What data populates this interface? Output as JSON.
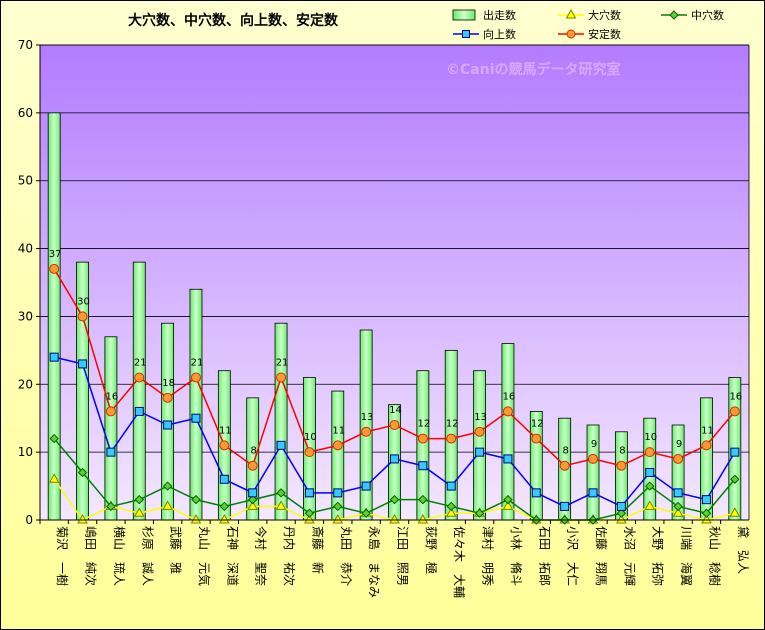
{
  "chart_data": {
    "type": "bar",
    "title": "大穴数、中穴数、向上数、安定数",
    "watermark": "©Caniの競馬データ研究室",
    "ylim": [
      0,
      70
    ],
    "yticks": [
      0,
      10,
      20,
      30,
      40,
      50,
      60,
      70
    ],
    "grid": "horizontal",
    "legend_position": "top-right",
    "categories": [
      "菊沢　一樹",
      "嶋田　純次",
      "横山　琉人",
      "杉原　誠人",
      "武藤　雅",
      "丸山　元気",
      "石神　深道",
      "今村　聖奈",
      "丹内　祐次",
      "斎藤　新",
      "丸田　恭介",
      "永島　まなみ",
      "江田　照男",
      "荻野　極",
      "佐々木　大輔",
      "津村　明秀",
      "小林　脩斗",
      "石田　拓郎",
      "小沢　大仁",
      "佐藤　翔馬",
      "水沼　元輝",
      "大野　拓弥",
      "川端　海翼",
      "秋山　稔樹",
      "黛　弘人"
    ],
    "series": [
      {
        "name": "出走数",
        "type": "bar",
        "color": "#99ff99",
        "values": [
          60,
          38,
          27,
          38,
          29,
          34,
          22,
          18,
          29,
          21,
          19,
          28,
          17,
          22,
          25,
          22,
          26,
          16,
          15,
          14,
          13,
          15,
          14,
          18,
          21
        ]
      },
      {
        "name": "大穴数",
        "type": "line",
        "color": "#ffff00",
        "marker": "triangle",
        "values": [
          6,
          0,
          2,
          1,
          2,
          0,
          0,
          2,
          2,
          0,
          0,
          1,
          0,
          0,
          1,
          1,
          2,
          0,
          0,
          0,
          0,
          2,
          1,
          0,
          1
        ]
      },
      {
        "name": "中穴数",
        "type": "line",
        "color": "#008000",
        "marker": "diamond",
        "values": [
          12,
          7,
          2,
          3,
          5,
          3,
          2,
          3,
          4,
          1,
          2,
          1,
          3,
          3,
          2,
          1,
          3,
          0,
          0,
          0,
          1,
          5,
          2,
          1,
          6
        ]
      },
      {
        "name": "向上数",
        "type": "line",
        "color": "#0000ff",
        "marker": "square",
        "values": [
          24,
          23,
          10,
          16,
          14,
          15,
          6,
          4,
          11,
          4,
          4,
          5,
          9,
          8,
          5,
          10,
          9,
          4,
          2,
          4,
          2,
          7,
          4,
          3,
          10
        ]
      },
      {
        "name": "安定数",
        "type": "line",
        "color": "#ff0000",
        "marker": "circle",
        "labeled": true,
        "values": [
          37,
          30,
          16,
          21,
          18,
          21,
          11,
          8,
          21,
          10,
          11,
          13,
          14,
          12,
          12,
          13,
          16,
          12,
          8,
          9,
          8,
          10,
          9,
          11,
          16
        ]
      }
    ]
  }
}
